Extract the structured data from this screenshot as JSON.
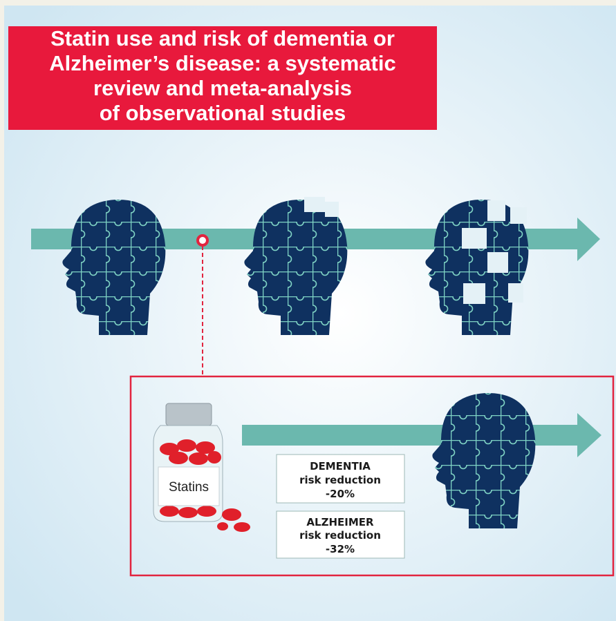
{
  "title": {
    "lines": [
      "Statin use and risk of dementia or",
      "Alzheimer’s disease: a systematic",
      "review and meta-analysis",
      "of observational studies"
    ]
  },
  "statins_label": "Statins",
  "boxes": [
    {
      "lines": [
        "DEMENTIA",
        "risk reduction",
        "-20%"
      ]
    },
    {
      "lines": [
        "ALZHEIMER",
        "risk reduction",
        "-32%"
      ]
    }
  ]
}
